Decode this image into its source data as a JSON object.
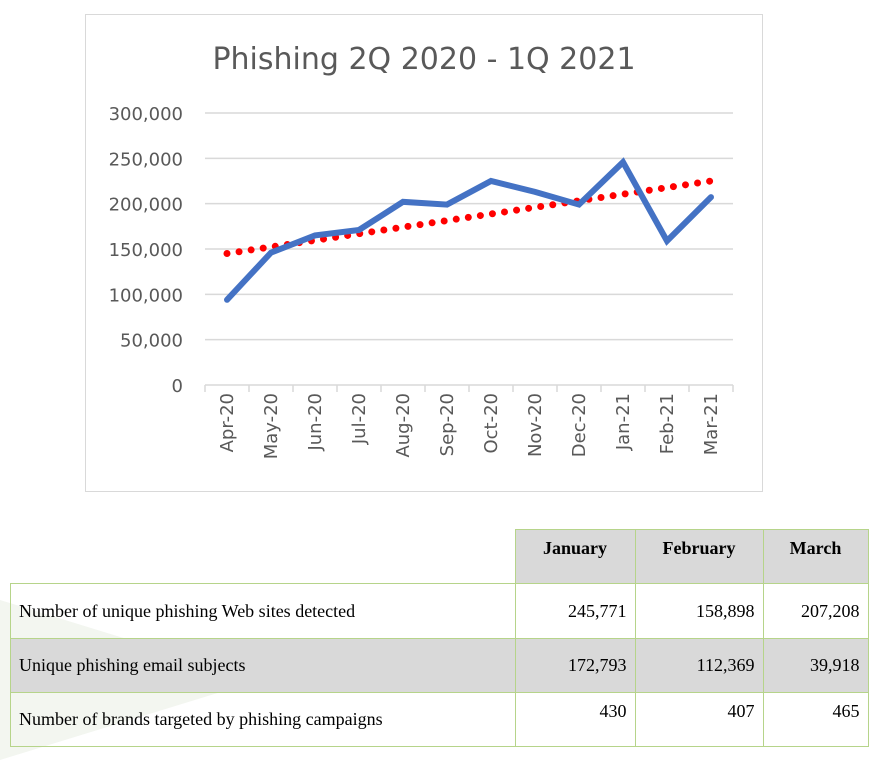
{
  "chart_data": {
    "type": "line",
    "title": "Phishing 2Q 2020 - 1Q 2021",
    "categories": [
      "Apr-20",
      "May-20",
      "Jun-20",
      "Jul-20",
      "Aug-20",
      "Sep-20",
      "Oct-20",
      "Nov-20",
      "Dec-20",
      "Jan-21",
      "Feb-21",
      "Mar-21"
    ],
    "series": [
      {
        "values": [
          94000,
          146000,
          165000,
          171000,
          202000,
          199000,
          225000,
          213000,
          199000,
          245771,
          158898,
          207208
        ],
        "color": "#4472c4",
        "style": "solid"
      }
    ],
    "trendline": {
      "type": "linear",
      "color": "#ff0000",
      "style": "dotted",
      "start": 145000,
      "end": 225000
    },
    "yticks": [
      "0",
      "50,000",
      "100,000",
      "150,000",
      "200,000",
      "250,000",
      "300,000"
    ],
    "ylim": [
      0,
      300000
    ],
    "grid": true,
    "xlabel": "",
    "ylabel": ""
  },
  "table": {
    "headers": [
      "January",
      "February",
      "March"
    ],
    "rows": [
      {
        "label": "Number of unique phishing Web sites detected",
        "values": [
          "245,771",
          "158,898",
          "207,208"
        ]
      },
      {
        "label": "Unique phishing email subjects",
        "values": [
          "172,793",
          "112,369",
          "39,918"
        ]
      },
      {
        "label": "Number of brands targeted by phishing campaigns",
        "values": [
          "430",
          "407",
          "465"
        ]
      }
    ]
  }
}
